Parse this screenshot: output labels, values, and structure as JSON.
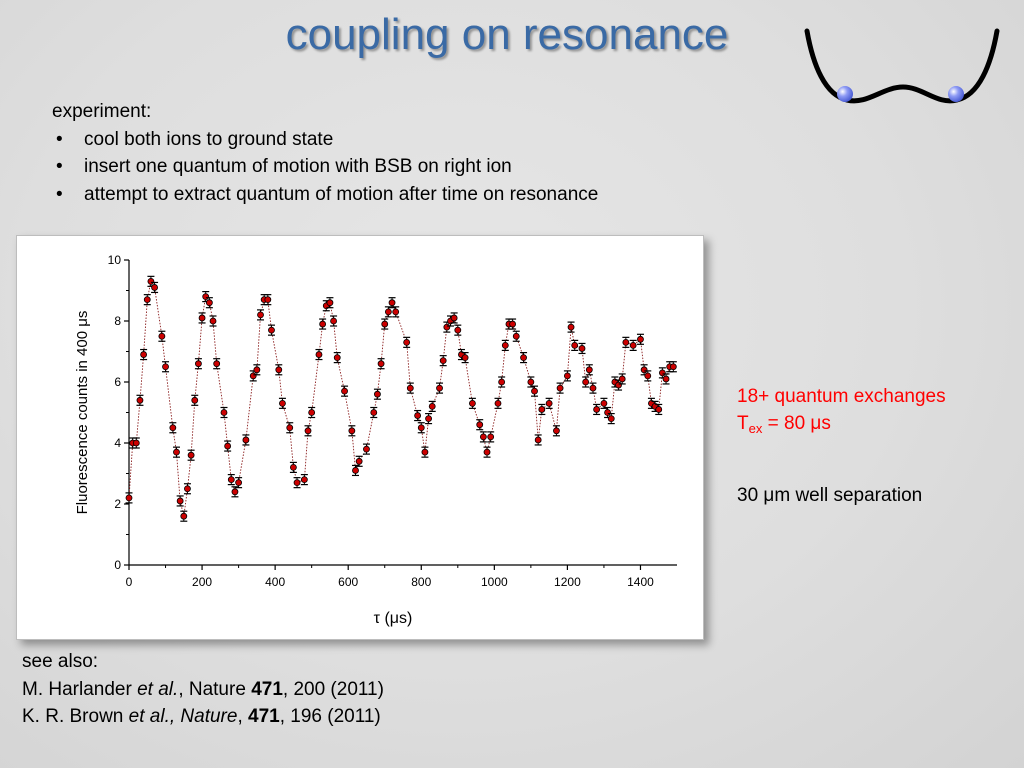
{
  "slide": {
    "title": "coupling on resonance",
    "experiment": {
      "heading": "experiment:",
      "bullets": [
        "cool both ions to ground state",
        "insert  one quantum of motion with BSB on right ion",
        "attempt to extract quantum of motion after time on resonance"
      ]
    },
    "notes": {
      "exchanges": "18+ quantum exchanges",
      "tex_symbol": "T",
      "tex_subscript": "ex",
      "tex_value": "= 80 μs",
      "well_separation": "30 μm well separation"
    },
    "references": {
      "see_also": "see also:",
      "ref1": {
        "authors": "M. Harlander ",
        "etal": "et al.",
        "journal": ", Nature ",
        "volume": "471",
        "rest": ", 200 (2011)"
      },
      "ref2": {
        "authors": "K. R. Brown ",
        "etal": "et al., Nature",
        "journal": ", ",
        "volume": "471",
        "rest": ", 196 (2011)"
      }
    },
    "colors": {
      "title": "#3a6aa5",
      "highlight": "#ff0000",
      "marker_fill": "#cc0000",
      "ion": "#6b7cf0"
    }
  },
  "chart_data": {
    "type": "scatter",
    "title": "",
    "xlabel": "τ (μs)",
    "ylabel": "Fluorescence counts in 400 μs",
    "xlim": [
      0,
      1500
    ],
    "ylim": [
      0,
      10
    ],
    "xticks": [
      "0",
      "200",
      "400",
      "600",
      "800",
      "1000",
      "1200",
      "1400"
    ],
    "yticks": [
      "0",
      "2",
      "4",
      "6",
      "8",
      "10"
    ],
    "grid": false,
    "connect_points": "dotted",
    "series": [
      {
        "x": [
          0,
          10,
          20,
          30,
          40,
          50,
          60,
          70,
          90,
          100,
          120,
          130,
          140,
          150,
          160,
          170,
          180,
          190,
          200,
          210,
          220,
          230,
          240,
          260,
          270,
          280,
          290,
          300,
          320,
          340,
          350,
          360,
          370,
          380,
          390,
          410,
          420,
          440,
          450,
          460,
          480,
          490,
          500,
          520,
          530,
          540,
          550,
          560,
          570,
          590,
          610,
          620,
          630,
          650,
          670,
          680,
          690,
          700,
          710,
          720,
          730,
          760,
          770,
          790,
          800,
          810,
          820,
          830,
          850,
          860,
          870,
          880,
          890,
          900,
          910,
          920,
          940,
          960,
          970,
          980,
          990,
          1010,
          1020,
          1030,
          1040,
          1050,
          1060,
          1080,
          1100,
          1110,
          1120,
          1130,
          1150,
          1170,
          1180,
          1200,
          1210,
          1220,
          1240,
          1250,
          1260,
          1270,
          1280,
          1300,
          1310,
          1320,
          1330,
          1340,
          1350,
          1360,
          1380,
          1400,
          1410,
          1420,
          1430,
          1440,
          1450,
          1460,
          1470,
          1480,
          1490
        ],
        "y": [
          2.2,
          4.0,
          4.0,
          5.4,
          6.9,
          8.7,
          9.3,
          9.1,
          7.5,
          6.5,
          4.5,
          3.7,
          2.1,
          1.6,
          2.5,
          3.6,
          5.4,
          6.6,
          8.1,
          8.8,
          8.6,
          8.0,
          6.6,
          5.0,
          3.9,
          2.8,
          2.4,
          2.7,
          4.1,
          6.2,
          6.4,
          8.2,
          8.7,
          8.7,
          7.7,
          6.4,
          5.3,
          4.5,
          3.2,
          2.7,
          2.8,
          4.4,
          5.0,
          6.9,
          7.9,
          8.5,
          8.6,
          8.0,
          6.8,
          5.7,
          4.4,
          3.1,
          3.4,
          3.8,
          5.0,
          5.6,
          6.6,
          7.9,
          8.3,
          8.6,
          8.3,
          7.3,
          5.8,
          4.9,
          4.5,
          3.7,
          4.8,
          5.2,
          5.8,
          6.7,
          7.8,
          8.0,
          8.1,
          7.7,
          6.9,
          6.8,
          5.3,
          4.6,
          4.2,
          3.7,
          4.2,
          5.3,
          6.0,
          7.2,
          7.9,
          7.9,
          7.5,
          6.8,
          6.0,
          5.7,
          4.1,
          5.1,
          5.3,
          4.4,
          5.8,
          6.2,
          7.8,
          7.2,
          7.1,
          6.0,
          6.4,
          5.8,
          5.1,
          5.3,
          5.0,
          4.8,
          6.0,
          5.9,
          6.1,
          7.3,
          7.2,
          7.4,
          6.4,
          6.2,
          5.3,
          5.2,
          5.1,
          6.3,
          6.1,
          6.5,
          6.5
        ]
      }
    ]
  }
}
